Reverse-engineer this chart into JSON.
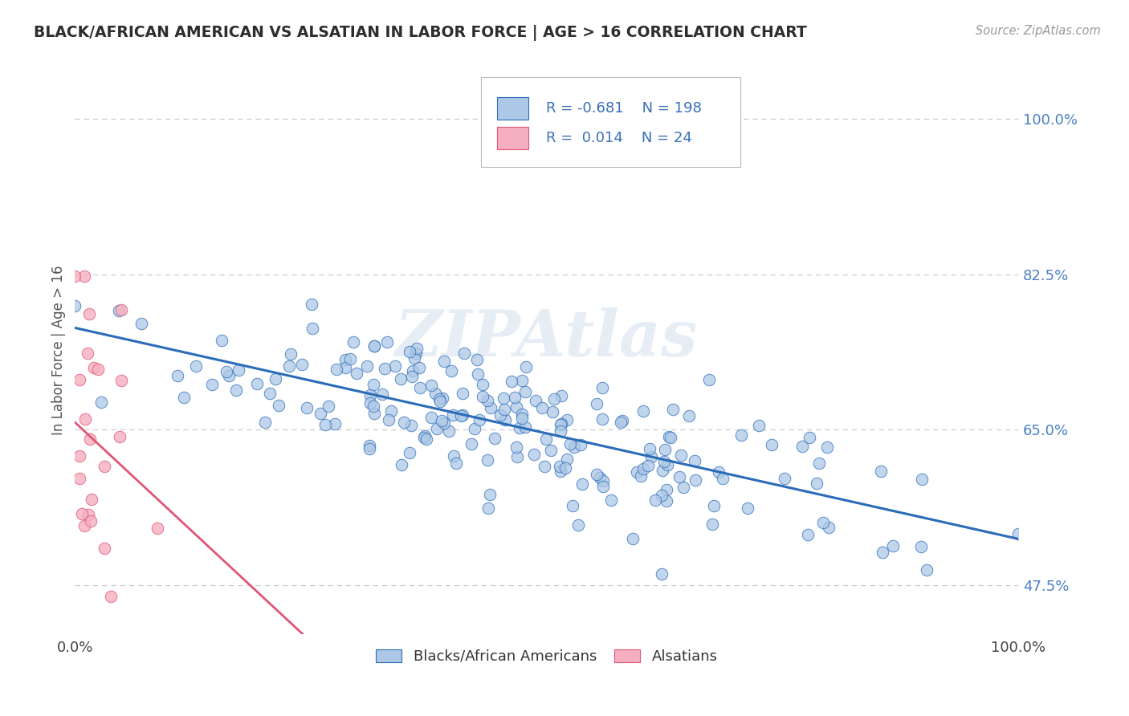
{
  "title": "BLACK/AFRICAN AMERICAN VS ALSATIAN IN LABOR FORCE | AGE > 16 CORRELATION CHART",
  "source": "Source: ZipAtlas.com",
  "ylabel": "In Labor Force | Age > 16",
  "xlim": [
    0.0,
    1.0
  ],
  "ylim": [
    0.42,
    1.06
  ],
  "yticks": [
    0.475,
    0.65,
    0.825,
    1.0
  ],
  "ytick_labels": [
    "47.5%",
    "65.0%",
    "82.5%",
    "100.0%"
  ],
  "xticks": [
    0.0,
    1.0
  ],
  "xtick_labels": [
    "0.0%",
    "100.0%"
  ],
  "blue_R": -0.681,
  "blue_N": 198,
  "pink_R": 0.014,
  "pink_N": 24,
  "legend_label_blue": "Blacks/African Americans",
  "legend_label_pink": "Alsatians",
  "dot_color_blue": "#adc8e6",
  "dot_color_pink": "#f5afc0",
  "line_color_blue": "#2b6cb8",
  "line_color_pink": "#e05575",
  "watermark": "ZIPAtlas",
  "background_color": "#ffffff",
  "grid_color": "#cccccc",
  "title_color": "#2d2d2d",
  "axis_label_color": "#555555",
  "legend_text_color": "#3a70b8",
  "right_tick_color": "#4a80c4"
}
